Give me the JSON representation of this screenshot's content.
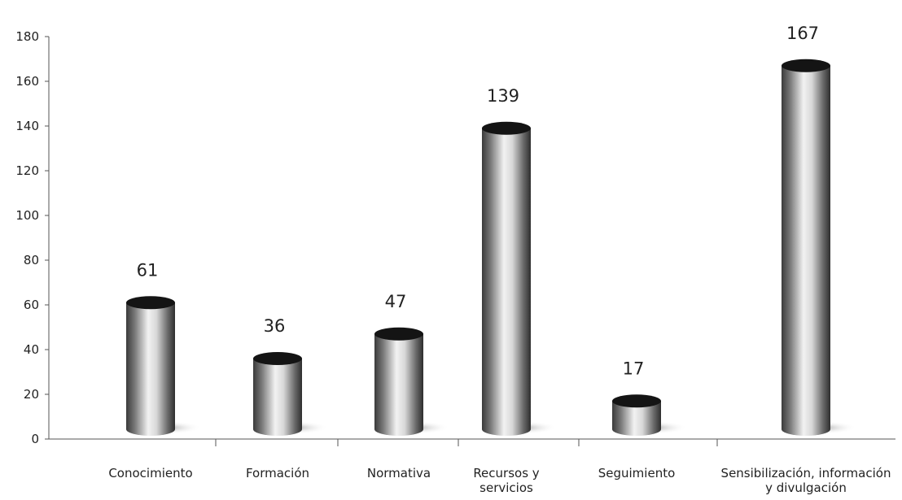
{
  "chart_data": {
    "type": "bar",
    "categories": [
      [
        "Conocimiento"
      ],
      [
        "Formación"
      ],
      [
        "Normativa"
      ],
      [
        "Recursos y",
        "servicios"
      ],
      [
        "Seguimiento"
      ],
      [
        "Sensibilización, información",
        "y divulgación"
      ]
    ],
    "values": [
      61,
      36,
      47,
      139,
      17,
      167
    ],
    "data_labels": [
      "61",
      "36",
      "47",
      "139",
      "17",
      "167"
    ],
    "y_ticks": [
      "0",
      "20",
      "40",
      "60",
      "80",
      "100",
      "120",
      "140",
      "160",
      "180"
    ],
    "ylim": [
      0,
      180
    ],
    "title": "",
    "xlabel": "",
    "ylabel": "",
    "grid": false,
    "legend": "none",
    "bar_style": "3d-cylinder",
    "colors": {
      "bar_dark": "#3a3a3a",
      "bar_light": "#f2f2f2",
      "bar_top": "#141414",
      "axis": "#555555"
    }
  }
}
